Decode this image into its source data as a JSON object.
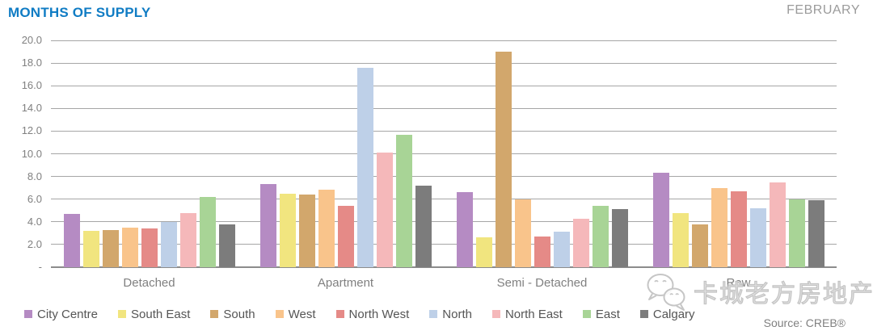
{
  "header": {
    "title": "MONTHS OF SUPPLY",
    "period": "FEBRUARY"
  },
  "source_label": "Source: CREB®",
  "watermark": {
    "text": "卡城老方房地产",
    "icon": "wechat-icon"
  },
  "chart_data": {
    "type": "bar",
    "title": "MONTHS OF SUPPLY",
    "xlabel": "",
    "ylabel": "",
    "ylim": [
      0,
      20
    ],
    "ytick_step": 2,
    "ytick_labels_bottom_to_top": [
      "-",
      "2.0",
      "4.0",
      "6.0",
      "8.0",
      "10.0",
      "12.0",
      "14.0",
      "16.0",
      "18.0",
      "20.0"
    ],
    "grid": true,
    "legend_position": "bottom",
    "categories": [
      "Detached",
      "Apartment",
      "Semi - Detached",
      "Row"
    ],
    "series": [
      {
        "name": "City Centre",
        "color": "#b58bc3",
        "values": [
          4.7,
          7.3,
          6.6,
          8.3
        ]
      },
      {
        "name": "South East",
        "color": "#f1e57f",
        "values": [
          3.2,
          6.5,
          2.6,
          4.8
        ]
      },
      {
        "name": "South",
        "color": "#d2a76c",
        "values": [
          3.3,
          6.4,
          19.0,
          3.8
        ]
      },
      {
        "name": "West",
        "color": "#f9c48b",
        "values": [
          3.5,
          6.8,
          6.0,
          7.0
        ]
      },
      {
        "name": "North West",
        "color": "#e58a87",
        "values": [
          3.4,
          5.4,
          2.7,
          6.7
        ]
      },
      {
        "name": "North",
        "color": "#bed0e8",
        "values": [
          4.0,
          17.6,
          3.1,
          5.2
        ]
      },
      {
        "name": "North East",
        "color": "#f5b8ba",
        "values": [
          4.8,
          10.1,
          4.3,
          7.5
        ]
      },
      {
        "name": "East",
        "color": "#a8d496",
        "values": [
          6.2,
          11.7,
          5.4,
          6.0
        ]
      },
      {
        "name": "Calgary",
        "color": "#7c7c7c",
        "values": [
          3.8,
          7.2,
          5.1,
          5.9
        ]
      }
    ]
  }
}
